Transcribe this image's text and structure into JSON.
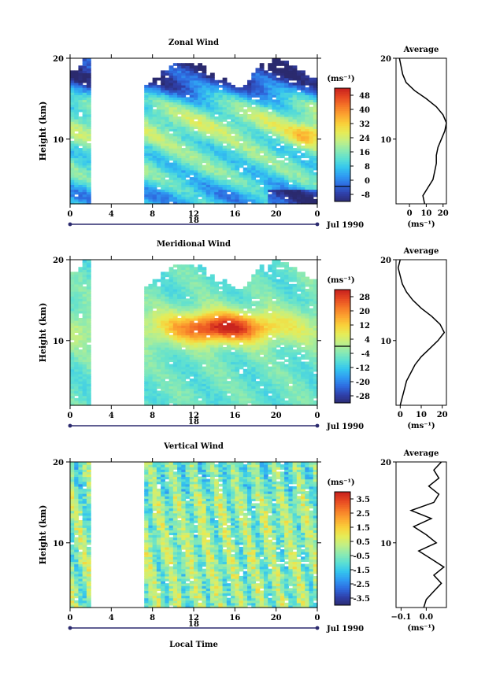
{
  "figure": {
    "date_label": "Jul 1990",
    "xlabel": "Local Time",
    "ylabel": "Height (km)",
    "unit": "(ms⁻¹)",
    "avg_title": "Average"
  },
  "chart_data": [
    {
      "id": "zonal",
      "type": "heatmap",
      "title": "Zonal Wind",
      "xlabel": "",
      "ylabel": "Height (km)",
      "x_ticks": [
        "0",
        "4",
        "8",
        "12",
        "16",
        "20",
        "0"
      ],
      "x_range": [
        0,
        24
      ],
      "y_ticks": [
        "20",
        "10"
      ],
      "y_range": [
        2,
        20
      ],
      "date_marker": "18",
      "data_gap": [
        2,
        7.2
      ],
      "colorbar": {
        "unit": "(ms⁻¹)",
        "ticks": [
          "48",
          "40",
          "32",
          "24",
          "16",
          "8",
          "0",
          "-8"
        ],
        "range": [
          -8,
          52
        ],
        "zero_line": 0
      },
      "profile": {
        "title": "Average",
        "x_ticks": [
          "0",
          "10",
          "20"
        ],
        "x_range": [
          -8,
          22
        ],
        "unit": "(ms⁻¹)",
        "points": [
          [
            9,
            2
          ],
          [
            8,
            3
          ],
          [
            11,
            4
          ],
          [
            14,
            5
          ],
          [
            15,
            6
          ],
          [
            16,
            7
          ],
          [
            16,
            8
          ],
          [
            17,
            9
          ],
          [
            19,
            10
          ],
          [
            21,
            11
          ],
          [
            22,
            12
          ],
          [
            20,
            13
          ],
          [
            16,
            14
          ],
          [
            10,
            15
          ],
          [
            3,
            16
          ],
          [
            -2,
            17
          ],
          [
            -4,
            18
          ],
          [
            -5,
            19
          ],
          [
            -6,
            20
          ]
        ]
      }
    },
    {
      "id": "meridional",
      "type": "heatmap",
      "title": "Meridional Wind",
      "xlabel": "",
      "ylabel": "Height (km)",
      "x_ticks": [
        "0",
        "4",
        "8",
        "12",
        "16",
        "20",
        "0"
      ],
      "x_range": [
        0,
        24
      ],
      "y_ticks": [
        "20",
        "10"
      ],
      "y_range": [
        2,
        20
      ],
      "date_marker": "18",
      "data_gap": [
        2,
        7.2
      ],
      "colorbar": {
        "unit": "(ms⁻¹)",
        "ticks": [
          "28",
          "20",
          "12",
          "4",
          "-4",
          "-12",
          "-20",
          "-28"
        ],
        "range": [
          -32,
          32
        ],
        "zero_line": 0
      },
      "profile": {
        "title": "Average",
        "x_ticks": [
          "0",
          "10",
          "20"
        ],
        "x_range": [
          -2,
          22
        ],
        "unit": "(ms⁻¹)",
        "points": [
          [
            0,
            2
          ],
          [
            1,
            3
          ],
          [
            2,
            4
          ],
          [
            3,
            5
          ],
          [
            5,
            6
          ],
          [
            7,
            7
          ],
          [
            10,
            8
          ],
          [
            14,
            9
          ],
          [
            18,
            10
          ],
          [
            21,
            11
          ],
          [
            19,
            12
          ],
          [
            15,
            13
          ],
          [
            10,
            14
          ],
          [
            6,
            15
          ],
          [
            3,
            16
          ],
          [
            1,
            17
          ],
          [
            0,
            18
          ],
          [
            -1,
            19
          ],
          [
            0,
            20
          ]
        ]
      }
    },
    {
      "id": "vertical",
      "type": "heatmap",
      "title": "Vertical Wind",
      "xlabel": "Local Time",
      "ylabel": "Height (km)",
      "x_ticks": [
        "0",
        "4",
        "8",
        "12",
        "16",
        "20",
        "0"
      ],
      "x_range": [
        0,
        24
      ],
      "y_ticks": [
        "20",
        "10"
      ],
      "y_range": [
        2,
        20
      ],
      "date_marker": "18",
      "data_gap": [
        2,
        7.2
      ],
      "colorbar": {
        "unit": "(ms⁻¹)",
        "ticks": [
          "3.5",
          "2.5",
          "1.5",
          "0.5",
          "-0.5",
          "-1.5",
          "-2.5",
          "-3.5"
        ],
        "range": [
          -4,
          4
        ],
        "zero_line": null
      },
      "profile": {
        "title": "Average",
        "x_ticks": [
          "−0.1",
          "0.0"
        ],
        "x_range": [
          -0.12,
          0.08
        ],
        "unit": "(ms⁻¹)",
        "points": [
          [
            -0.01,
            2
          ],
          [
            0.0,
            3
          ],
          [
            0.03,
            4
          ],
          [
            0.06,
            5
          ],
          [
            0.03,
            6
          ],
          [
            0.07,
            7
          ],
          [
            0.02,
            8
          ],
          [
            -0.03,
            9
          ],
          [
            0.04,
            10
          ],
          [
            0.0,
            11
          ],
          [
            -0.05,
            12
          ],
          [
            0.02,
            13
          ],
          [
            -0.06,
            14
          ],
          [
            0.03,
            15
          ],
          [
            0.05,
            16
          ],
          [
            0.01,
            17
          ],
          [
            0.05,
            18
          ],
          [
            0.03,
            19
          ],
          [
            0.06,
            20
          ]
        ]
      }
    }
  ]
}
